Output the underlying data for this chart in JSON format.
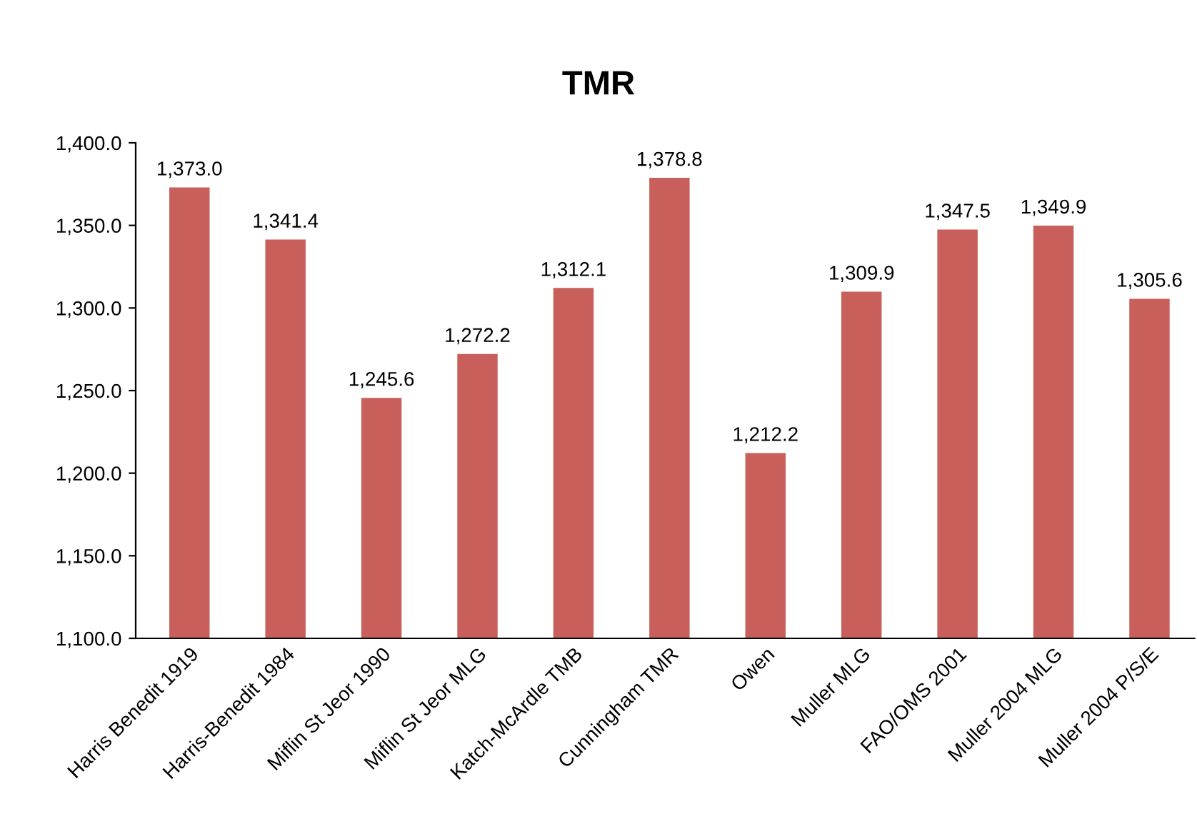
{
  "chart_data": {
    "type": "bar",
    "title": "TMR",
    "categories": [
      "Harris Benedit 1919",
      "Harris-Benedit 1984",
      "Miflin St Jeor 1990",
      "Miflin St Jeor MLG",
      "Katch-McArdle TMB",
      "Cunningham TMR",
      "Owen",
      "Muller MLG",
      "FAO/OMS 2001",
      "Muller 2004 MLG",
      "Muller 2004 P/S/E"
    ],
    "values": [
      1373.0,
      1341.4,
      1245.6,
      1272.2,
      1312.1,
      1378.8,
      1212.2,
      1309.9,
      1347.5,
      1349.9,
      1305.6
    ],
    "value_labels": [
      "1,373.0",
      "1,341.4",
      "1,245.6",
      "1,272.2",
      "1,312.1",
      "1,378.8",
      "1,212.2",
      "1,309.9",
      "1,347.5",
      "1,349.9",
      "1,305.6"
    ],
    "color": "#c95f5a",
    "ylim": [
      1100,
      1400
    ],
    "yticks": [
      {
        "value": 1100,
        "label": "1,100.0"
      },
      {
        "value": 1150,
        "label": "1,150.0"
      },
      {
        "value": 1200,
        "label": "1,200.0"
      },
      {
        "value": 1250,
        "label": "1,250.0"
      },
      {
        "value": 1300,
        "label": "1,300.0"
      },
      {
        "value": 1350,
        "label": "1,350.0"
      },
      {
        "value": 1400,
        "label": "1,400.0"
      }
    ],
    "grid": false,
    "legend": false
  }
}
